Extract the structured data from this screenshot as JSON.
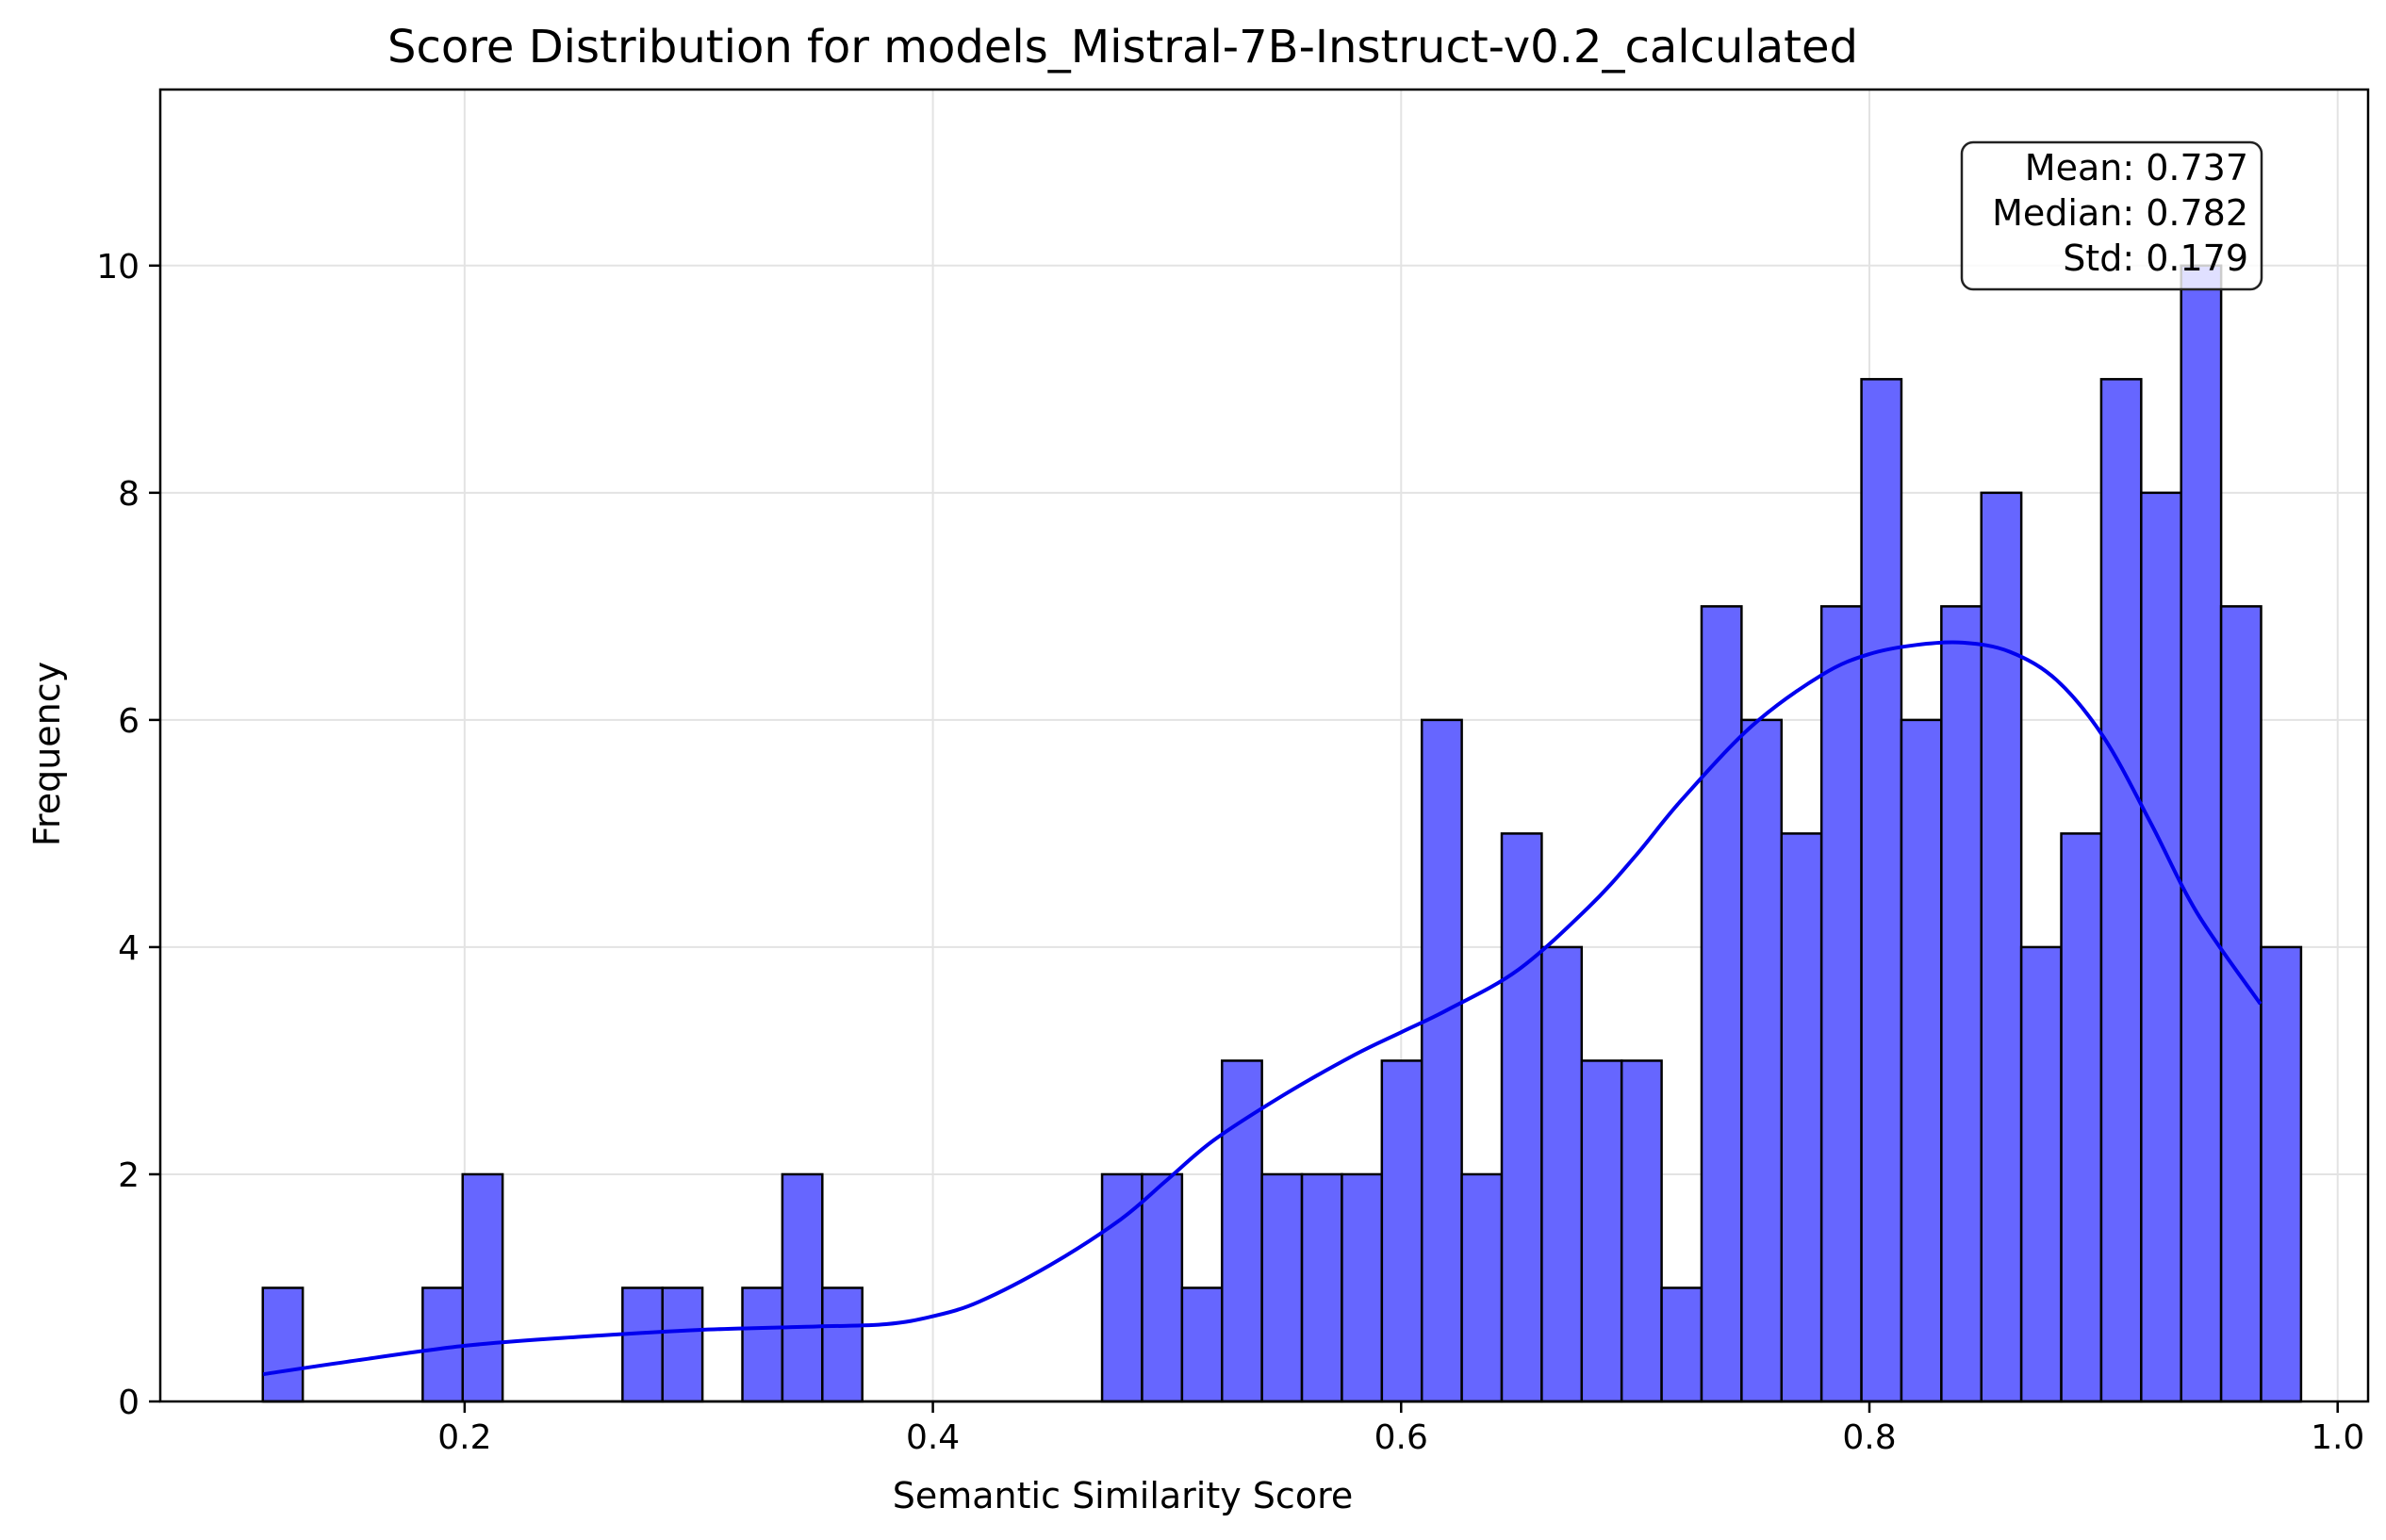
{
  "chart_data": {
    "type": "bar",
    "title": "Score Distribution for models_Mistral-7B-Instruct-v0.2_calculated",
    "xlabel": "Semantic Similarity Score",
    "ylabel": "Frequency",
    "xlim": [
      0.07,
      1.013
    ],
    "ylim": [
      0,
      11.55
    ],
    "xticks": [
      {
        "value": 0.2,
        "label": "0.2"
      },
      {
        "value": 0.4,
        "label": "0.4"
      },
      {
        "value": 0.6,
        "label": "0.6"
      },
      {
        "value": 0.8,
        "label": "0.8"
      },
      {
        "value": 1.0,
        "label": "1.0"
      }
    ],
    "yticks": [
      {
        "value": 0,
        "label": "0"
      },
      {
        "value": 2,
        "label": "2"
      },
      {
        "value": 4,
        "label": "4"
      },
      {
        "value": 6,
        "label": "6"
      },
      {
        "value": 8,
        "label": "8"
      },
      {
        "value": 10,
        "label": "10"
      }
    ],
    "grid": true,
    "bar_color": "#6666ff",
    "bar_edge_color": "#000000",
    "kde_color": "#0000ee",
    "bin_start": 0.1138,
    "bin_width": 0.01707,
    "counts": [
      1,
      0,
      0,
      0,
      1,
      2,
      0,
      0,
      0,
      1,
      1,
      0,
      1,
      2,
      1,
      0,
      0,
      0,
      0,
      0,
      0,
      2,
      2,
      1,
      3,
      2,
      2,
      2,
      3,
      6,
      2,
      5,
      4,
      3,
      3,
      1,
      7,
      6,
      5,
      7,
      9,
      6,
      7,
      8,
      4,
      5,
      9,
      8,
      10,
      7,
      4
    ],
    "kde": {
      "x": [
        0.114,
        0.15,
        0.2,
        0.25,
        0.3,
        0.35,
        0.38,
        0.4,
        0.42,
        0.45,
        0.48,
        0.5,
        0.52,
        0.55,
        0.58,
        0.6,
        0.62,
        0.65,
        0.68,
        0.7,
        0.72,
        0.75,
        0.78,
        0.8,
        0.82,
        0.84,
        0.86,
        0.88,
        0.9,
        0.92,
        0.94,
        0.967
      ],
      "y": [
        0.24,
        0.35,
        0.49,
        0.57,
        0.63,
        0.66,
        0.68,
        0.75,
        0.88,
        1.2,
        1.6,
        1.95,
        2.3,
        2.7,
        3.05,
        3.25,
        3.45,
        3.8,
        4.35,
        4.8,
        5.3,
        5.95,
        6.4,
        6.58,
        6.66,
        6.68,
        6.6,
        6.35,
        5.85,
        5.1,
        4.3,
        3.5
      ]
    },
    "stats": {
      "mean": "Mean: 0.737",
      "median": "Median: 0.782",
      "std": "Std: 0.179"
    }
  }
}
